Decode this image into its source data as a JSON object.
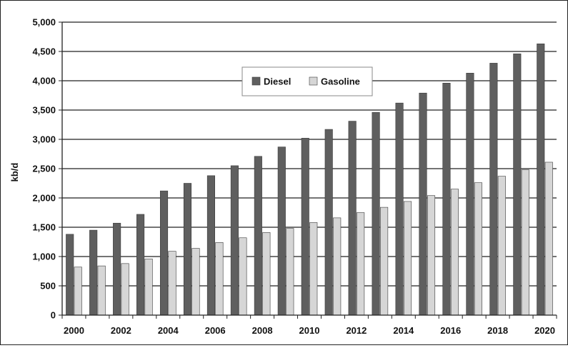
{
  "chart_data": {
    "type": "bar",
    "title": "",
    "xlabel": "",
    "ylabel": "kb/d",
    "ylim": [
      0,
      5000
    ],
    "yticks": [
      "0",
      "500",
      "1,000",
      "1,500",
      "2,000",
      "2,500",
      "3,000",
      "3,500",
      "4,000",
      "4,500",
      "5,000"
    ],
    "ytick_values": [
      0,
      500,
      1000,
      1500,
      2000,
      2500,
      3000,
      3500,
      4000,
      4500,
      5000
    ],
    "grid": "horizontal",
    "legend_position": "top-center",
    "categories": [
      "2000",
      "2001",
      "2002",
      "2003",
      "2004",
      "2005",
      "2006",
      "2007",
      "2008",
      "2009",
      "2010",
      "2011",
      "2012",
      "2013",
      "2014",
      "2015",
      "2016",
      "2017",
      "2018",
      "2019",
      "2020"
    ],
    "xtick_labels": [
      "2000",
      "",
      "2002",
      "",
      "2004",
      "",
      "2006",
      "",
      "2008",
      "",
      "2010",
      "",
      "2012",
      "",
      "2014",
      "",
      "2016",
      "",
      "2018",
      "",
      "2020"
    ],
    "series": [
      {
        "name": "Diesel",
        "color": "#5f5f5f",
        "values": [
          1380,
          1450,
          1570,
          1720,
          2120,
          2250,
          2380,
          2550,
          2710,
          2870,
          3020,
          3170,
          3310,
          3460,
          3620,
          3790,
          3960,
          4130,
          4300,
          4460,
          4630
        ]
      },
      {
        "name": "Gasoline",
        "color": "#d6d6d6",
        "values": [
          820,
          840,
          880,
          960,
          1090,
          1140,
          1240,
          1320,
          1410,
          1480,
          1580,
          1660,
          1750,
          1840,
          1940,
          2040,
          2150,
          2260,
          2370,
          2480,
          2610
        ]
      }
    ]
  }
}
